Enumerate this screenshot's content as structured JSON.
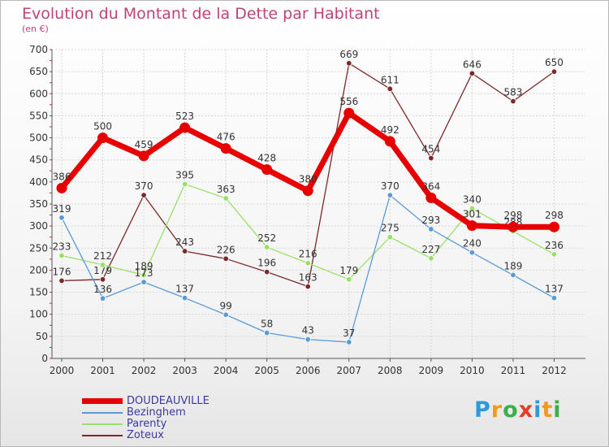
{
  "header": {
    "title": "Evolution du Montant de la Dette par Habitant",
    "subtitle": "(en €)"
  },
  "brand": {
    "letters": [
      {
        "char": "P",
        "color": "#2f9ad8"
      },
      {
        "char": "r",
        "color": "#f39a1e"
      },
      {
        "char": "o",
        "color": "#3cae4a"
      },
      {
        "char": "x",
        "color": "#e0402a"
      },
      {
        "char": "i",
        "color": "#2f9ad8"
      },
      {
        "char": "t",
        "color": "#f39a1e"
      },
      {
        "char": "i",
        "color": "#3cae4a"
      }
    ]
  },
  "chart_data": {
    "type": "line",
    "title": "Evolution du Montant de la Dette par Habitant",
    "subtitle": "(en €)",
    "xlabel": "",
    "ylabel": "",
    "ylim": [
      0,
      700
    ],
    "yticks": [
      0,
      50,
      100,
      150,
      200,
      250,
      300,
      350,
      400,
      450,
      500,
      550,
      600,
      650,
      700
    ],
    "grid": true,
    "legend_position": "bottom-left",
    "categories": [
      "2000",
      "2001",
      "2002",
      "2003",
      "2004",
      "2005",
      "2006",
      "2007",
      "2008",
      "2009",
      "2010",
      "2011",
      "2012"
    ],
    "series": [
      {
        "name": "DOUDEAUVILLE",
        "color": "#e60000",
        "values": [
          386,
          500,
          459,
          523,
          476,
          428,
          380,
          556,
          492,
          364,
          301,
          298,
          298
        ]
      },
      {
        "name": "Bezinghem",
        "color": "#5b9bd5",
        "values": [
          319,
          136,
          173,
          137,
          99,
          58,
          43,
          37,
          370,
          293,
          240,
          189,
          137
        ]
      },
      {
        "name": "Parenty",
        "color": "#99e066",
        "values": [
          233,
          212,
          189,
          395,
          363,
          252,
          216,
          179,
          275,
          227,
          340,
          288,
          236
        ]
      },
      {
        "name": "Zoteux",
        "color": "#7b2a2a",
        "values": [
          176,
          179,
          370,
          243,
          226,
          196,
          163,
          669,
          611,
          454,
          646,
          583,
          650
        ]
      }
    ]
  }
}
